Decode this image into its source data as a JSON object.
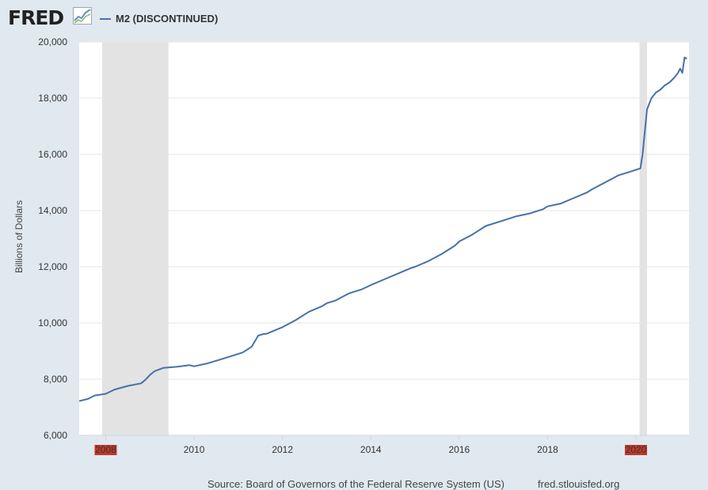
{
  "header": {
    "logo_text": "FRED",
    "logo_icon": "line-graph-icon"
  },
  "legend": {
    "series_label": "M2 (DISCONTINUED)"
  },
  "footer": {
    "source": "Source: Board of Governors of the Federal Reserve System (US)",
    "site": "fred.stlouisfed.org"
  },
  "colors": {
    "series": "#4572a7",
    "recession": "#e3e3e3",
    "background": "#e1e9f0",
    "plot_bg": "#ffffff",
    "highlight": "#c0392b"
  },
  "chart_data": {
    "type": "line",
    "title": "M2 (DISCONTINUED)",
    "xlabel": "",
    "ylabel": "Billions of Dollars",
    "xlim": [
      2007.4,
      2021.2
    ],
    "ylim": [
      6000,
      20000
    ],
    "x_ticks": [
      2008,
      2010,
      2012,
      2014,
      2016,
      2018,
      2020
    ],
    "x_tick_labels": [
      "2008",
      "2010",
      "2012",
      "2014",
      "2016",
      "2018",
      "2020"
    ],
    "highlighted_x_ticks": [
      "2008",
      "2020"
    ],
    "y_ticks": [
      6000,
      8000,
      10000,
      12000,
      14000,
      16000,
      18000,
      20000
    ],
    "y_tick_labels": [
      "6,000",
      "8,000",
      "10,000",
      "12,000",
      "14,000",
      "16,000",
      "18,000",
      "20,000"
    ],
    "grid": true,
    "recessions": [
      [
        2007.92,
        2009.42
      ],
      [
        2020.08,
        2020.25
      ]
    ],
    "series": [
      {
        "name": "M2 (DISCONTINUED)",
        "x": [
          2007.4,
          2007.6,
          2007.75,
          2008.0,
          2008.2,
          2008.5,
          2008.8,
          2008.9,
          2009.0,
          2009.1,
          2009.3,
          2009.6,
          2009.9,
          2010.0,
          2010.3,
          2010.6,
          2010.9,
          2011.1,
          2011.3,
          2011.45,
          2011.55,
          2011.65,
          2011.8,
          2012.0,
          2012.3,
          2012.6,
          2012.9,
          2013.0,
          2013.2,
          2013.5,
          2013.8,
          2014.0,
          2014.3,
          2014.6,
          2014.9,
          2015.0,
          2015.3,
          2015.6,
          2015.9,
          2016.0,
          2016.3,
          2016.6,
          2016.9,
          2017.0,
          2017.3,
          2017.6,
          2017.9,
          2018.0,
          2018.3,
          2018.6,
          2018.9,
          2019.0,
          2019.3,
          2019.6,
          2019.9,
          2020.0,
          2020.1,
          2020.15,
          2020.2,
          2020.25,
          2020.35,
          2020.45,
          2020.55,
          2020.65,
          2020.75,
          2020.85,
          2020.95,
          2021.0,
          2021.05,
          2021.1,
          2021.15
        ],
        "values": [
          7220,
          7300,
          7420,
          7480,
          7630,
          7760,
          7850,
          7980,
          8150,
          8280,
          8400,
          8440,
          8500,
          8460,
          8560,
          8700,
          8850,
          8950,
          9150,
          9550,
          9600,
          9620,
          9720,
          9850,
          10100,
          10400,
          10600,
          10700,
          10800,
          11050,
          11200,
          11350,
          11550,
          11750,
          11950,
          12000,
          12200,
          12450,
          12750,
          12900,
          13150,
          13450,
          13600,
          13650,
          13800,
          13900,
          14050,
          14150,
          14250,
          14450,
          14650,
          14750,
          15000,
          15250,
          15400,
          15450,
          15500,
          16000,
          16800,
          17600,
          18000,
          18200,
          18300,
          18450,
          18550,
          18700,
          18900,
          19050,
          18900,
          19450,
          19400
        ]
      }
    ]
  }
}
